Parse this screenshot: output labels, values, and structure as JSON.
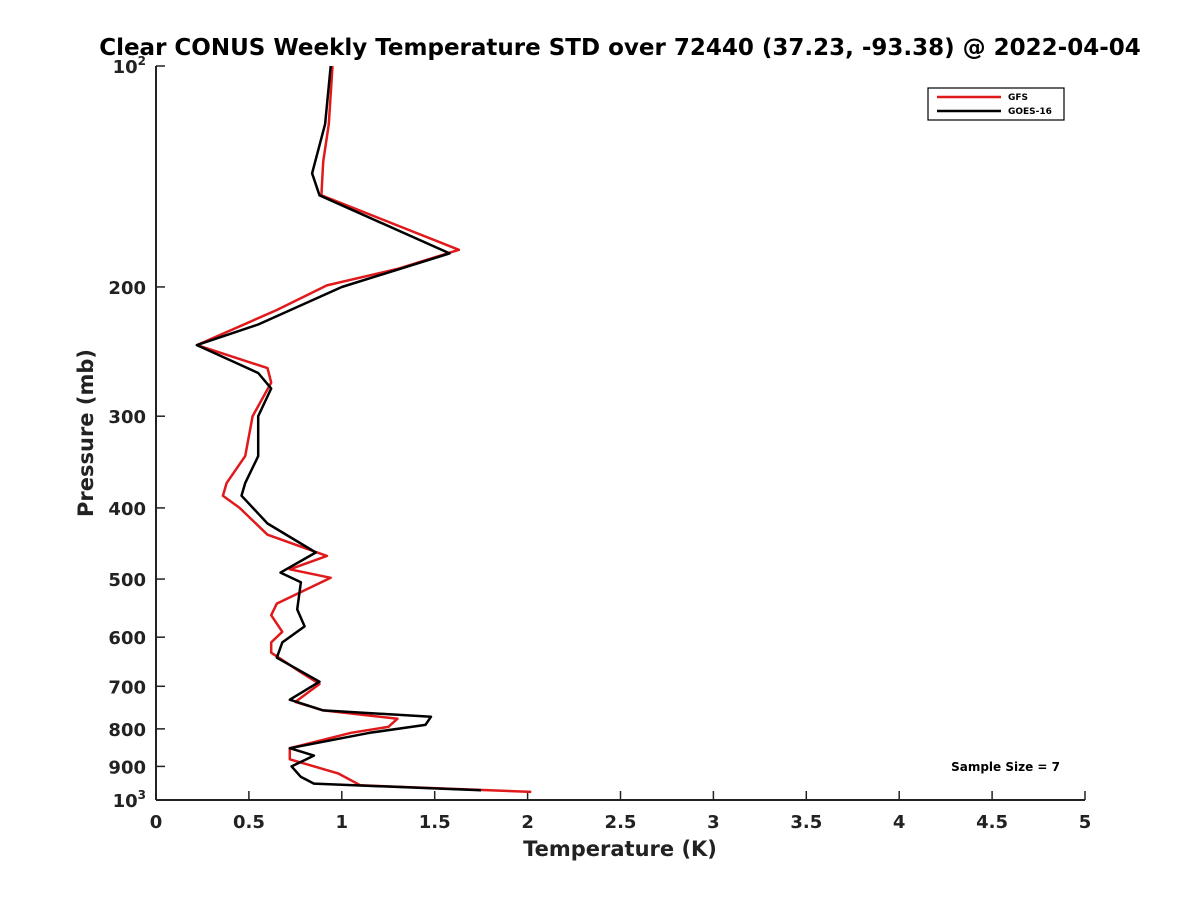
{
  "chart_data": {
    "type": "line",
    "title": "Clear CONUS Weekly Temperature STD over 72440 (37.23, -93.38) @ 2022-04-04",
    "xlabel": "Temperature (K)",
    "ylabel": "Pressure (mb)",
    "xlim": [
      0,
      5
    ],
    "ylim": [
      100,
      1000
    ],
    "yscale": "log",
    "y_reversed": true,
    "grid": false,
    "legend_position": "top-right",
    "x_ticks": [
      "0",
      "0.5",
      "1",
      "1.5",
      "2",
      "2.5",
      "3",
      "3.5",
      "4",
      "4.5",
      "5"
    ],
    "y_ticks": [
      {
        "value": 100,
        "base": "10",
        "exp": "2"
      },
      {
        "value": 200,
        "label": "200"
      },
      {
        "value": 300,
        "label": "300"
      },
      {
        "value": 400,
        "label": "400"
      },
      {
        "value": 500,
        "label": "500"
      },
      {
        "value": 600,
        "label": "600"
      },
      {
        "value": 700,
        "label": "700"
      },
      {
        "value": 800,
        "label": "800"
      },
      {
        "value": 900,
        "label": "900"
      },
      {
        "value": 1000,
        "base": "10",
        "exp": "3"
      }
    ],
    "annotation": "Sample Size = 7",
    "series": [
      {
        "name": "GFS",
        "color": "#e0191b",
        "points": [
          [
            0.95,
            100
          ],
          [
            0.93,
            120
          ],
          [
            0.9,
            135
          ],
          [
            0.89,
            150
          ],
          [
            1.63,
            178
          ],
          [
            1.3,
            189
          ],
          [
            0.92,
            199
          ],
          [
            0.65,
            215
          ],
          [
            0.22,
            240
          ],
          [
            0.6,
            258
          ],
          [
            0.62,
            270
          ],
          [
            0.52,
            300
          ],
          [
            0.48,
            340
          ],
          [
            0.38,
            370
          ],
          [
            0.36,
            385
          ],
          [
            0.45,
            400
          ],
          [
            0.6,
            435
          ],
          [
            0.92,
            465
          ],
          [
            0.72,
            485
          ],
          [
            0.94,
            498
          ],
          [
            0.65,
            540
          ],
          [
            0.62,
            560
          ],
          [
            0.68,
            590
          ],
          [
            0.62,
            610
          ],
          [
            0.62,
            630
          ],
          [
            0.78,
            670
          ],
          [
            0.88,
            695
          ],
          [
            0.75,
            735
          ],
          [
            0.9,
            755
          ],
          [
            1.3,
            775
          ],
          [
            1.25,
            795
          ],
          [
            1.05,
            810
          ],
          [
            0.72,
            850
          ],
          [
            0.72,
            880
          ],
          [
            0.98,
            920
          ],
          [
            1.1,
            955
          ],
          [
            2.02,
            975
          ]
        ]
      },
      {
        "name": "GOES-16",
        "color": "#000000",
        "points": [
          [
            0.94,
            100
          ],
          [
            0.91,
            120
          ],
          [
            0.84,
            140
          ],
          [
            0.88,
            150
          ],
          [
            1.58,
            180
          ],
          [
            1.0,
            200
          ],
          [
            0.55,
            225
          ],
          [
            0.22,
            240
          ],
          [
            0.55,
            262
          ],
          [
            0.62,
            275
          ],
          [
            0.55,
            300
          ],
          [
            0.55,
            340
          ],
          [
            0.48,
            370
          ],
          [
            0.46,
            385
          ],
          [
            0.6,
            420
          ],
          [
            0.86,
            460
          ],
          [
            0.67,
            490
          ],
          [
            0.78,
            505
          ],
          [
            0.76,
            550
          ],
          [
            0.8,
            580
          ],
          [
            0.68,
            610
          ],
          [
            0.65,
            640
          ],
          [
            0.88,
            690
          ],
          [
            0.72,
            730
          ],
          [
            0.9,
            755
          ],
          [
            1.48,
            770
          ],
          [
            1.45,
            790
          ],
          [
            1.15,
            810
          ],
          [
            0.72,
            850
          ],
          [
            0.85,
            870
          ],
          [
            0.73,
            900
          ],
          [
            0.78,
            930
          ],
          [
            0.85,
            950
          ],
          [
            1.75,
            970
          ]
        ]
      }
    ]
  }
}
